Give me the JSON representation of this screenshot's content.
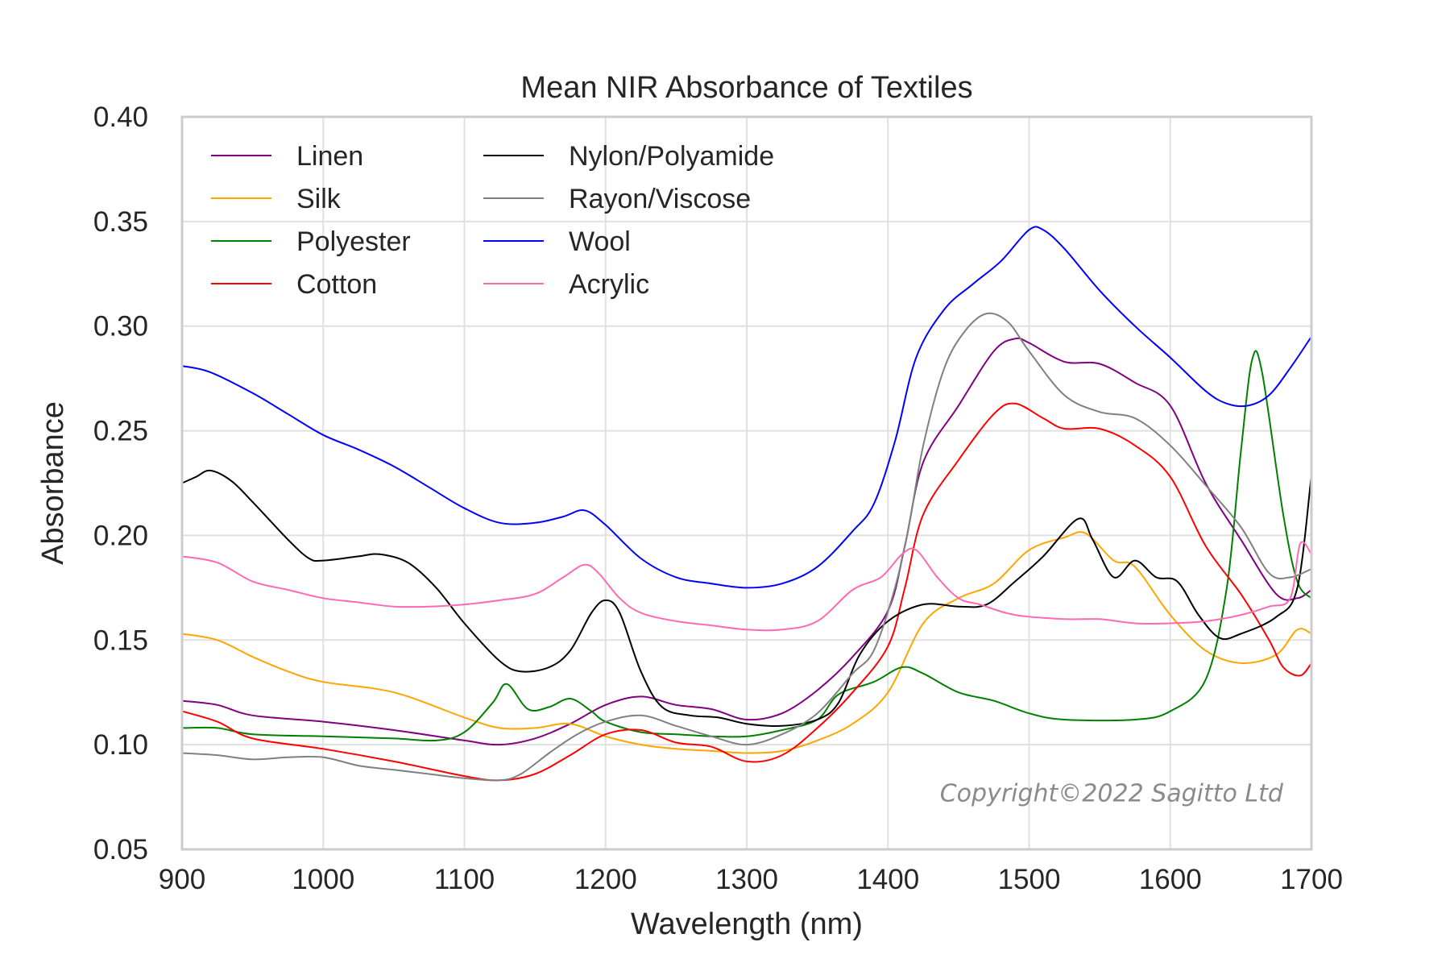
{
  "chart_data": {
    "type": "line",
    "title": "Mean NIR Absorbance of Textiles",
    "xlabel": "Wavelength (nm)",
    "ylabel": "Absorbance",
    "xlim": [
      900,
      1700
    ],
    "ylim": [
      0.05,
      0.4
    ],
    "xticks": [
      900,
      1000,
      1100,
      1200,
      1300,
      1400,
      1500,
      1600,
      1700
    ],
    "yticks": [
      0.05,
      0.1,
      0.15,
      0.2,
      0.25,
      0.3,
      0.35,
      0.4
    ],
    "ytick_labels": [
      "0.05",
      "0.10",
      "0.15",
      "0.20",
      "0.25",
      "0.30",
      "0.35",
      "0.40"
    ],
    "grid": true,
    "legend_position": "top-left",
    "legend_columns": 2,
    "annotation": "Copyright©2022 Sagitto Ltd",
    "series": [
      {
        "name": "Linen",
        "color": "#800080",
        "points": [
          [
            900,
            0.121
          ],
          [
            925,
            0.119
          ],
          [
            950,
            0.114
          ],
          [
            1000,
            0.111
          ],
          [
            1050,
            0.107
          ],
          [
            1100,
            0.102
          ],
          [
            1125,
            0.1
          ],
          [
            1150,
            0.103
          ],
          [
            1175,
            0.11
          ],
          [
            1200,
            0.119
          ],
          [
            1225,
            0.123
          ],
          [
            1250,
            0.119
          ],
          [
            1275,
            0.117
          ],
          [
            1300,
            0.112
          ],
          [
            1325,
            0.115
          ],
          [
            1350,
            0.126
          ],
          [
            1375,
            0.142
          ],
          [
            1400,
            0.164
          ],
          [
            1412,
            0.195
          ],
          [
            1425,
            0.235
          ],
          [
            1450,
            0.262
          ],
          [
            1475,
            0.288
          ],
          [
            1490,
            0.294
          ],
          [
            1500,
            0.292
          ],
          [
            1525,
            0.283
          ],
          [
            1550,
            0.282
          ],
          [
            1575,
            0.273
          ],
          [
            1600,
            0.262
          ],
          [
            1625,
            0.225
          ],
          [
            1650,
            0.198
          ],
          [
            1675,
            0.172
          ],
          [
            1690,
            0.17
          ],
          [
            1700,
            0.174
          ]
        ]
      },
      {
        "name": "Silk",
        "color": "#ffa500",
        "points": [
          [
            900,
            0.153
          ],
          [
            925,
            0.15
          ],
          [
            950,
            0.142
          ],
          [
            975,
            0.135
          ],
          [
            1000,
            0.13
          ],
          [
            1050,
            0.125
          ],
          [
            1100,
            0.113
          ],
          [
            1125,
            0.108
          ],
          [
            1150,
            0.108
          ],
          [
            1175,
            0.11
          ],
          [
            1200,
            0.104
          ],
          [
            1225,
            0.1
          ],
          [
            1250,
            0.098
          ],
          [
            1275,
            0.097
          ],
          [
            1300,
            0.096
          ],
          [
            1325,
            0.097
          ],
          [
            1350,
            0.102
          ],
          [
            1375,
            0.11
          ],
          [
            1400,
            0.125
          ],
          [
            1425,
            0.158
          ],
          [
            1450,
            0.17
          ],
          [
            1475,
            0.177
          ],
          [
            1500,
            0.193
          ],
          [
            1525,
            0.199
          ],
          [
            1540,
            0.201
          ],
          [
            1560,
            0.188
          ],
          [
            1575,
            0.185
          ],
          [
            1600,
            0.162
          ],
          [
            1625,
            0.145
          ],
          [
            1650,
            0.139
          ],
          [
            1675,
            0.143
          ],
          [
            1690,
            0.155
          ],
          [
            1700,
            0.153
          ]
        ]
      },
      {
        "name": "Polyester",
        "color": "#008000",
        "points": [
          [
            900,
            0.108
          ],
          [
            925,
            0.108
          ],
          [
            950,
            0.105
          ],
          [
            1000,
            0.104
          ],
          [
            1050,
            0.103
          ],
          [
            1080,
            0.102
          ],
          [
            1100,
            0.106
          ],
          [
            1120,
            0.12
          ],
          [
            1130,
            0.129
          ],
          [
            1145,
            0.117
          ],
          [
            1160,
            0.118
          ],
          [
            1175,
            0.122
          ],
          [
            1190,
            0.116
          ],
          [
            1200,
            0.111
          ],
          [
            1225,
            0.106
          ],
          [
            1250,
            0.105
          ],
          [
            1275,
            0.104
          ],
          [
            1300,
            0.104
          ],
          [
            1325,
            0.107
          ],
          [
            1350,
            0.112
          ],
          [
            1365,
            0.124
          ],
          [
            1390,
            0.13
          ],
          [
            1410,
            0.137
          ],
          [
            1425,
            0.134
          ],
          [
            1450,
            0.125
          ],
          [
            1475,
            0.121
          ],
          [
            1500,
            0.115
          ],
          [
            1525,
            0.112
          ],
          [
            1575,
            0.112
          ],
          [
            1600,
            0.116
          ],
          [
            1625,
            0.131
          ],
          [
            1640,
            0.175
          ],
          [
            1650,
            0.24
          ],
          [
            1658,
            0.284
          ],
          [
            1665,
            0.278
          ],
          [
            1680,
            0.21
          ],
          [
            1690,
            0.178
          ],
          [
            1700,
            0.17
          ]
        ]
      },
      {
        "name": "Cotton",
        "color": "#ff0000",
        "points": [
          [
            900,
            0.116
          ],
          [
            925,
            0.111
          ],
          [
            950,
            0.103
          ],
          [
            1000,
            0.098
          ],
          [
            1050,
            0.092
          ],
          [
            1100,
            0.085
          ],
          [
            1125,
            0.083
          ],
          [
            1150,
            0.086
          ],
          [
            1175,
            0.095
          ],
          [
            1200,
            0.105
          ],
          [
            1225,
            0.107
          ],
          [
            1250,
            0.101
          ],
          [
            1275,
            0.099
          ],
          [
            1300,
            0.092
          ],
          [
            1325,
            0.095
          ],
          [
            1350,
            0.108
          ],
          [
            1375,
            0.125
          ],
          [
            1400,
            0.147
          ],
          [
            1412,
            0.175
          ],
          [
            1425,
            0.21
          ],
          [
            1450,
            0.236
          ],
          [
            1475,
            0.258
          ],
          [
            1490,
            0.263
          ],
          [
            1510,
            0.256
          ],
          [
            1525,
            0.251
          ],
          [
            1550,
            0.251
          ],
          [
            1575,
            0.243
          ],
          [
            1600,
            0.228
          ],
          [
            1625,
            0.195
          ],
          [
            1650,
            0.172
          ],
          [
            1670,
            0.15
          ],
          [
            1680,
            0.137
          ],
          [
            1692,
            0.133
          ],
          [
            1700,
            0.139
          ]
        ]
      },
      {
        "name": "Nylon/Polyamide",
        "color": "#000000",
        "points": [
          [
            900,
            0.225
          ],
          [
            910,
            0.228
          ],
          [
            920,
            0.231
          ],
          [
            935,
            0.226
          ],
          [
            950,
            0.216
          ],
          [
            975,
            0.198
          ],
          [
            990,
            0.189
          ],
          [
            1000,
            0.188
          ],
          [
            1025,
            0.19
          ],
          [
            1040,
            0.191
          ],
          [
            1060,
            0.187
          ],
          [
            1080,
            0.175
          ],
          [
            1100,
            0.158
          ],
          [
            1125,
            0.14
          ],
          [
            1140,
            0.135
          ],
          [
            1160,
            0.137
          ],
          [
            1175,
            0.145
          ],
          [
            1190,
            0.163
          ],
          [
            1200,
            0.169
          ],
          [
            1210,
            0.163
          ],
          [
            1225,
            0.135
          ],
          [
            1240,
            0.118
          ],
          [
            1260,
            0.114
          ],
          [
            1280,
            0.113
          ],
          [
            1300,
            0.11
          ],
          [
            1325,
            0.109
          ],
          [
            1350,
            0.112
          ],
          [
            1365,
            0.12
          ],
          [
            1380,
            0.143
          ],
          [
            1400,
            0.159
          ],
          [
            1425,
            0.167
          ],
          [
            1450,
            0.166
          ],
          [
            1470,
            0.167
          ],
          [
            1490,
            0.178
          ],
          [
            1510,
            0.19
          ],
          [
            1535,
            0.208
          ],
          [
            1545,
            0.198
          ],
          [
            1560,
            0.18
          ],
          [
            1575,
            0.188
          ],
          [
            1590,
            0.18
          ],
          [
            1605,
            0.178
          ],
          [
            1620,
            0.162
          ],
          [
            1635,
            0.151
          ],
          [
            1650,
            0.153
          ],
          [
            1675,
            0.161
          ],
          [
            1690,
            0.175
          ],
          [
            1700,
            0.229
          ]
        ]
      },
      {
        "name": "Rayon/Viscose",
        "color": "#808080",
        "points": [
          [
            900,
            0.096
          ],
          [
            925,
            0.095
          ],
          [
            950,
            0.093
          ],
          [
            975,
            0.094
          ],
          [
            1000,
            0.094
          ],
          [
            1025,
            0.09
          ],
          [
            1050,
            0.088
          ],
          [
            1075,
            0.086
          ],
          [
            1100,
            0.084
          ],
          [
            1125,
            0.083
          ],
          [
            1140,
            0.086
          ],
          [
            1160,
            0.096
          ],
          [
            1180,
            0.105
          ],
          [
            1200,
            0.111
          ],
          [
            1225,
            0.114
          ],
          [
            1250,
            0.109
          ],
          [
            1275,
            0.104
          ],
          [
            1300,
            0.1
          ],
          [
            1325,
            0.105
          ],
          [
            1350,
            0.115
          ],
          [
            1375,
            0.134
          ],
          [
            1390,
            0.145
          ],
          [
            1405,
            0.175
          ],
          [
            1415,
            0.205
          ],
          [
            1425,
            0.243
          ],
          [
            1440,
            0.28
          ],
          [
            1455,
            0.298
          ],
          [
            1470,
            0.306
          ],
          [
            1485,
            0.302
          ],
          [
            1500,
            0.288
          ],
          [
            1525,
            0.267
          ],
          [
            1550,
            0.259
          ],
          [
            1575,
            0.256
          ],
          [
            1600,
            0.243
          ],
          [
            1625,
            0.224
          ],
          [
            1650,
            0.204
          ],
          [
            1670,
            0.182
          ],
          [
            1685,
            0.18
          ],
          [
            1700,
            0.184
          ]
        ]
      },
      {
        "name": "Wool",
        "color": "#0000ff",
        "points": [
          [
            900,
            0.281
          ],
          [
            920,
            0.278
          ],
          [
            950,
            0.268
          ],
          [
            975,
            0.258
          ],
          [
            1000,
            0.248
          ],
          [
            1025,
            0.241
          ],
          [
            1050,
            0.233
          ],
          [
            1075,
            0.223
          ],
          [
            1100,
            0.213
          ],
          [
            1125,
            0.206
          ],
          [
            1150,
            0.206
          ],
          [
            1170,
            0.209
          ],
          [
            1185,
            0.212
          ],
          [
            1200,
            0.205
          ],
          [
            1225,
            0.189
          ],
          [
            1250,
            0.18
          ],
          [
            1275,
            0.177
          ],
          [
            1300,
            0.175
          ],
          [
            1325,
            0.177
          ],
          [
            1350,
            0.185
          ],
          [
            1375,
            0.202
          ],
          [
            1390,
            0.215
          ],
          [
            1405,
            0.245
          ],
          [
            1420,
            0.285
          ],
          [
            1440,
            0.308
          ],
          [
            1460,
            0.32
          ],
          [
            1480,
            0.331
          ],
          [
            1500,
            0.346
          ],
          [
            1510,
            0.346
          ],
          [
            1525,
            0.337
          ],
          [
            1550,
            0.317
          ],
          [
            1575,
            0.3
          ],
          [
            1600,
            0.285
          ],
          [
            1625,
            0.269
          ],
          [
            1640,
            0.263
          ],
          [
            1655,
            0.262
          ],
          [
            1670,
            0.267
          ],
          [
            1685,
            0.28
          ],
          [
            1700,
            0.295
          ]
        ]
      },
      {
        "name": "Acrylic",
        "color": "#ff69b4",
        "points": [
          [
            900,
            0.19
          ],
          [
            925,
            0.187
          ],
          [
            950,
            0.178
          ],
          [
            975,
            0.174
          ],
          [
            1000,
            0.17
          ],
          [
            1025,
            0.168
          ],
          [
            1050,
            0.166
          ],
          [
            1075,
            0.166
          ],
          [
            1100,
            0.167
          ],
          [
            1125,
            0.169
          ],
          [
            1150,
            0.172
          ],
          [
            1170,
            0.18
          ],
          [
            1185,
            0.186
          ],
          [
            1195,
            0.182
          ],
          [
            1210,
            0.17
          ],
          [
            1225,
            0.163
          ],
          [
            1250,
            0.159
          ],
          [
            1275,
            0.157
          ],
          [
            1300,
            0.155
          ],
          [
            1325,
            0.155
          ],
          [
            1350,
            0.159
          ],
          [
            1375,
            0.174
          ],
          [
            1395,
            0.18
          ],
          [
            1410,
            0.191
          ],
          [
            1420,
            0.193
          ],
          [
            1435,
            0.18
          ],
          [
            1450,
            0.17
          ],
          [
            1465,
            0.167
          ],
          [
            1490,
            0.162
          ],
          [
            1525,
            0.16
          ],
          [
            1550,
            0.16
          ],
          [
            1575,
            0.158
          ],
          [
            1600,
            0.158
          ],
          [
            1625,
            0.159
          ],
          [
            1650,
            0.162
          ],
          [
            1670,
            0.166
          ],
          [
            1685,
            0.17
          ],
          [
            1692,
            0.196
          ],
          [
            1700,
            0.191
          ]
        ]
      }
    ]
  }
}
